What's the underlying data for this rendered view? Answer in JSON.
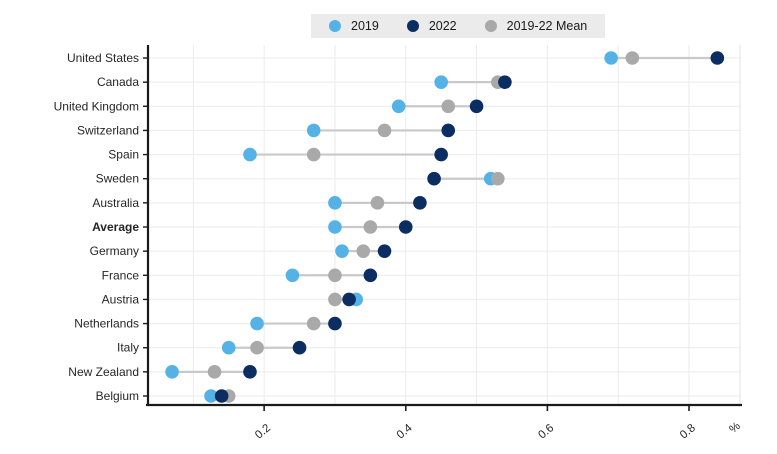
{
  "chart_data": {
    "type": "scatter",
    "variant": "dumbbell-dot-plot",
    "title": "",
    "xlabel": "%",
    "ylabel": "",
    "unit_label": "%",
    "xlim": [
      0.036,
      0.872
    ],
    "xticks": [
      0.2,
      0.4,
      0.6,
      0.8
    ],
    "xtick_labels": [
      "0.2",
      "0.4",
      "0.6",
      "0.8"
    ],
    "grid": true,
    "legend_position": "top-center",
    "bold_category": "Average",
    "categories": [
      "United States",
      "Canada",
      "United Kingdom",
      "Switzerland",
      "Spain",
      "Sweden",
      "Australia",
      "Average",
      "Germany",
      "France",
      "Austria",
      "Netherlands",
      "Italy",
      "New Zealand",
      "Belgium"
    ],
    "series": [
      {
        "name": "2019",
        "color": "#55b2e6",
        "values": [
          0.69,
          0.45,
          0.39,
          0.27,
          0.18,
          0.52,
          0.3,
          0.3,
          0.31,
          0.24,
          0.33,
          0.19,
          0.15,
          0.07,
          0.125
        ]
      },
      {
        "name": "2022",
        "color": "#0c2d62",
        "values": [
          0.84,
          0.54,
          0.5,
          0.46,
          0.45,
          0.44,
          0.42,
          0.4,
          0.37,
          0.35,
          0.32,
          0.3,
          0.25,
          0.18,
          0.14
        ]
      },
      {
        "name": "2019-22 Mean",
        "color": "#a9a9a9",
        "values": [
          0.72,
          0.53,
          0.46,
          0.37,
          0.27,
          0.53,
          0.36,
          0.35,
          0.34,
          0.3,
          0.3,
          0.27,
          0.19,
          0.13,
          0.15
        ]
      }
    ],
    "colors": {
      "connector": "#c9c9c9",
      "axis": "#1a1a1a",
      "gridline": "#ebebeb",
      "legend_background": "#ebebeb",
      "text": "#262626"
    }
  }
}
